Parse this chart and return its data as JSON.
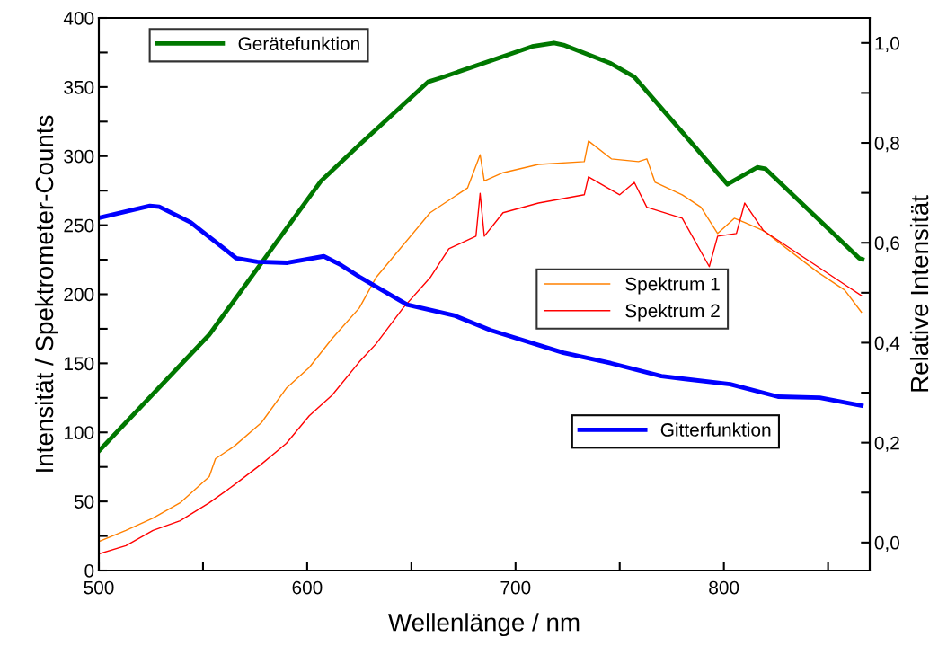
{
  "chart_data": {
    "type": "line",
    "xlabel": "Wellenlänge / nm",
    "ylabel": "Intensität / Spektrometer-Counts",
    "y2label": "Relative Intensität",
    "xlim": [
      500,
      870
    ],
    "xticks": [
      500,
      {
        "value": 550,
        "label": null
      },
      600,
      {
        "value": 650,
        "label": null
      },
      700,
      {
        "value": 750,
        "label": null
      },
      800,
      {
        "value": 850,
        "label": null
      }
    ],
    "ylim": [
      0,
      400
    ],
    "yticks": [
      0,
      {
        "value": 25,
        "label": null
      },
      50,
      {
        "value": 75,
        "label": null
      },
      100,
      {
        "value": 125,
        "label": null
      },
      150,
      {
        "value": 175,
        "label": null
      },
      200,
      {
        "value": 225,
        "label": null
      },
      250,
      {
        "value": 275,
        "label": null
      },
      300,
      {
        "value": 325,
        "label": null
      },
      350,
      {
        "value": 375,
        "label": null
      },
      400
    ],
    "y2lim": [
      -0.056,
      1.05
    ],
    "y2ticks": [
      {
        "value": 0.0,
        "label": "0,0"
      },
      {
        "value": 0.1,
        "label": null
      },
      {
        "value": 0.2,
        "label": "0,2"
      },
      {
        "value": 0.3,
        "label": null
      },
      {
        "value": 0.4,
        "label": "0,4"
      },
      {
        "value": 0.5,
        "label": null
      },
      {
        "value": 0.6,
        "label": "0,6"
      },
      {
        "value": 0.7,
        "label": null
      },
      {
        "value": 0.8,
        "label": "0,8"
      },
      {
        "value": 0.9,
        "label": null
      },
      {
        "value": 1.0,
        "label": "1,0"
      }
    ],
    "grid": false,
    "legend": "right",
    "line_style": "solid",
    "series": [
      {
        "name": "Gerätefunktion",
        "color": "#007800",
        "axis": "y2",
        "x": [
          500,
          553,
          606.5,
          625,
          658,
          664,
          708,
          718.5,
          723,
          745.7,
          757,
          801.7,
          816,
          820,
          865,
          866.4
        ],
        "values": [
          0.183,
          0.416,
          0.723,
          0.796,
          0.922,
          0.93,
          0.993,
          1.0,
          0.996,
          0.959,
          0.932,
          0.717,
          0.751,
          0.748,
          0.569,
          0.567
        ]
      },
      {
        "name": "Spektrum 1",
        "color": "#ff8000",
        "axis": "y",
        "x": [
          500,
          513,
          526,
          539,
          553,
          556,
          565,
          578,
          590,
          601,
          612,
          625,
          633,
          659,
          677,
          683,
          685,
          694,
          711,
          733,
          735,
          746,
          759,
          763,
          767,
          780,
          789,
          797,
          805,
          810,
          819,
          832,
          845,
          858,
          866
        ],
        "values": [
          21,
          29,
          38,
          49,
          68,
          81,
          90,
          107,
          132,
          147,
          168,
          190,
          212,
          259,
          277,
          301,
          282,
          288,
          294,
          296,
          311,
          298,
          296,
          298,
          281,
          272,
          263,
          244,
          255,
          252,
          246,
          231,
          216,
          203,
          187
        ]
      },
      {
        "name": "Spektrum 2",
        "color": "#ff0000",
        "axis": "y",
        "x": [
          500,
          513,
          526,
          539,
          553,
          565,
          578,
          590,
          601,
          612,
          625,
          633,
          646,
          659,
          668,
          681,
          683,
          685,
          694,
          711,
          733,
          735,
          750,
          757,
          763,
          780,
          793,
          797,
          806,
          810,
          819,
          832,
          845,
          858,
          866
        ],
        "values": [
          12,
          18,
          29,
          36,
          49,
          62,
          77,
          92,
          112,
          127,
          151,
          164,
          190,
          212,
          233,
          242,
          273,
          242,
          259,
          266,
          272,
          285,
          272,
          281,
          263,
          255,
          220,
          242,
          244,
          266,
          246,
          233,
          220,
          207,
          199
        ]
      },
      {
        "name": "Gitterfunktion",
        "color": "#0000ff",
        "axis": "y2",
        "x": [
          500,
          524.5,
          529,
          544,
          566,
          576,
          590.5,
          608,
          616,
          625,
          648,
          671,
          688,
          723,
          745.7,
          770,
          803,
          826,
          846,
          866
        ],
        "values": [
          0.65,
          0.674,
          0.672,
          0.641,
          0.569,
          0.562,
          0.56,
          0.573,
          0.556,
          0.532,
          0.476,
          0.454,
          0.425,
          0.38,
          0.359,
          0.333,
          0.317,
          0.292,
          0.29,
          0.274
        ]
      }
    ]
  }
}
